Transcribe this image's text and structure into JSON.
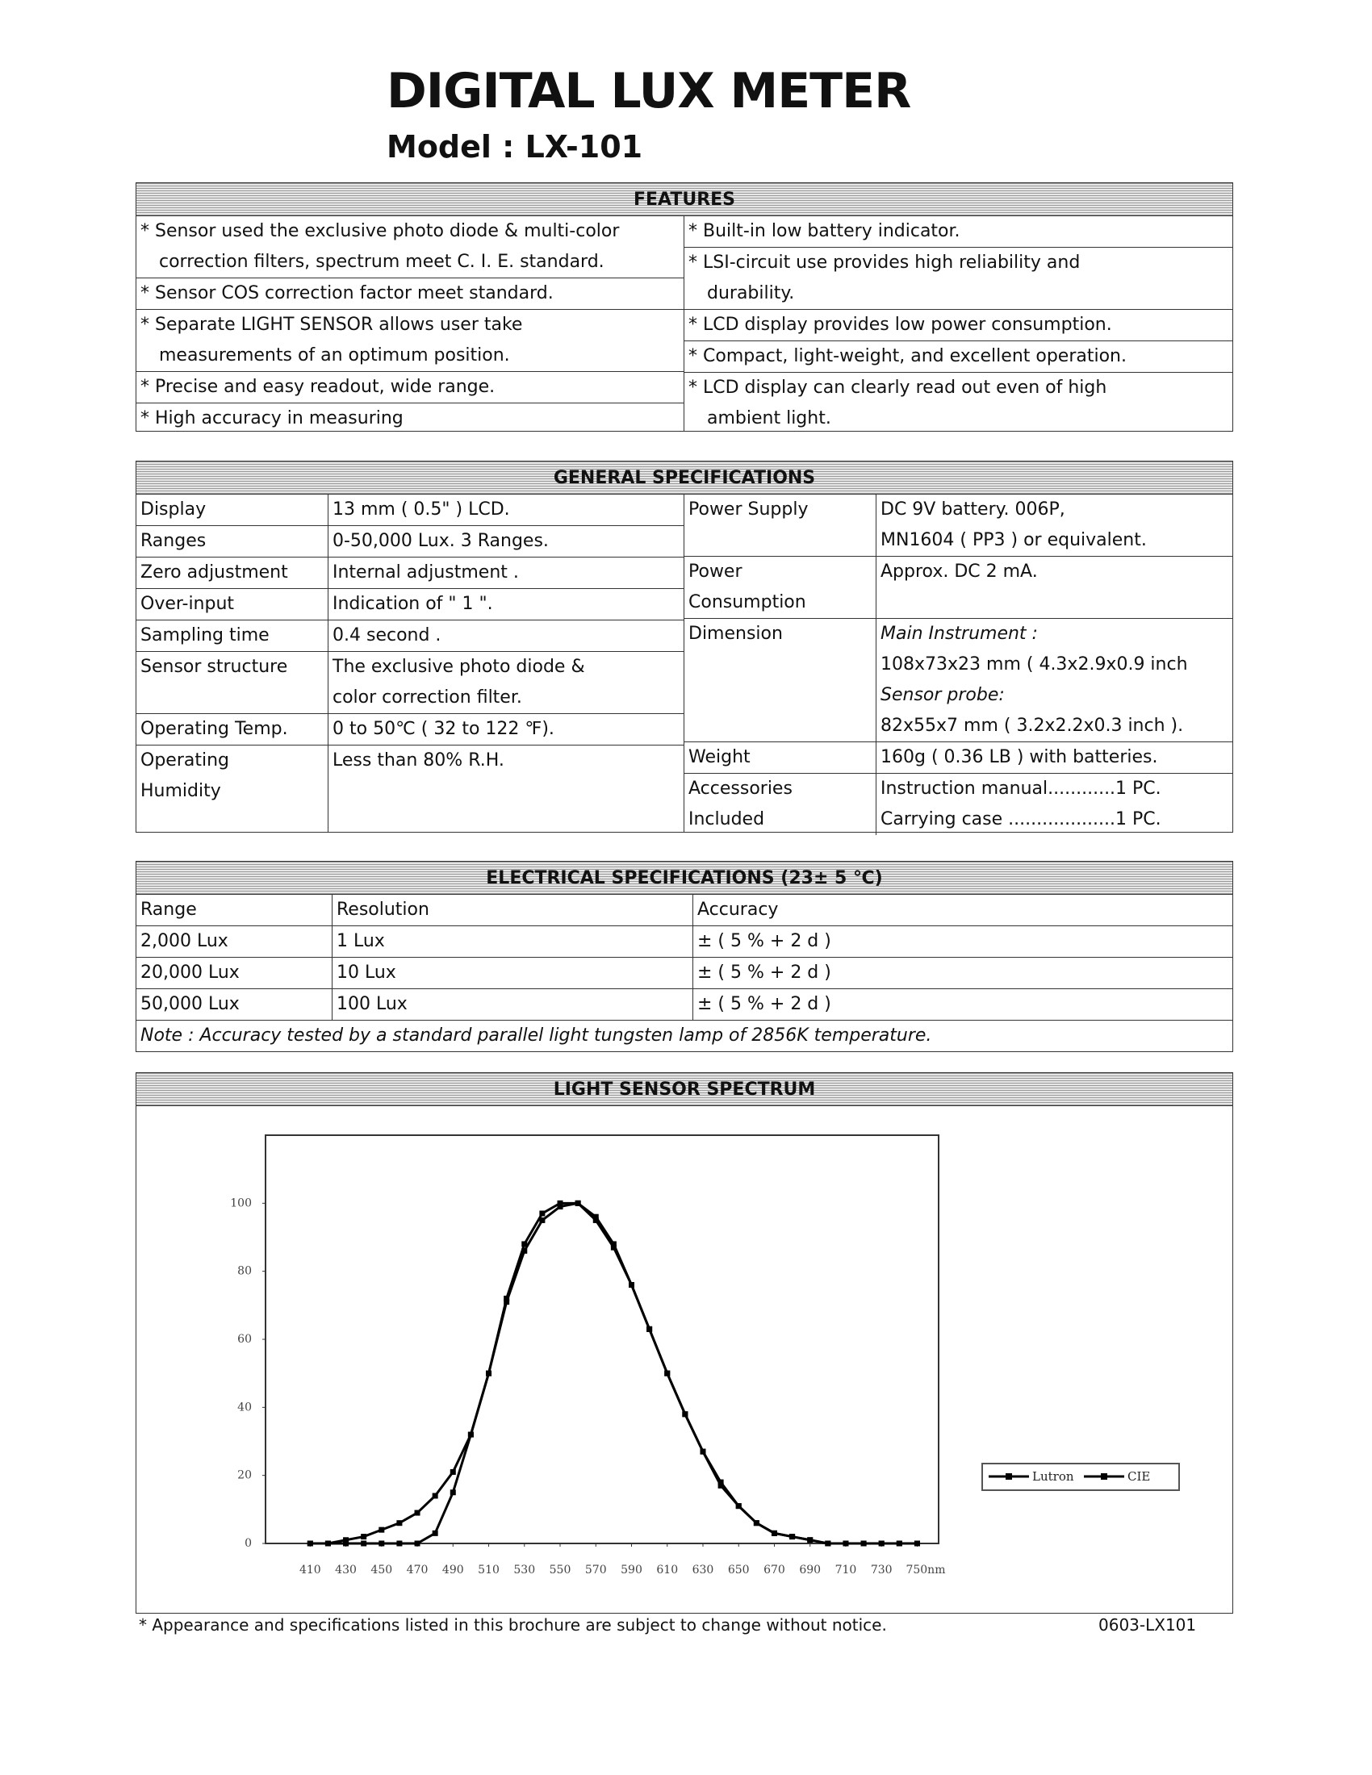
{
  "header": {
    "title": "DIGITAL LUX METER",
    "model": "Model : LX-101"
  },
  "features": {
    "heading": "FEATURES",
    "left": [
      [
        "* Sensor used the exclusive photo diode & multi-color",
        "correction filters, spectrum meet C. I. E. standard."
      ],
      [
        "*  Sensor COS correction factor meet standard."
      ],
      [
        "* Separate LIGHT SENSOR allows user take",
        "measurements of an optimum position."
      ],
      [
        "* Precise and easy readout, wide range."
      ],
      [
        "* High accuracy in measuring"
      ]
    ],
    "right": [
      [
        "* Built-in low battery indicator."
      ],
      [
        "* LSI-circuit use provides high reliability and",
        "durability."
      ],
      [
        "* LCD display provides low power consumption."
      ],
      [
        "* Compact, light-weight, and excellent operation."
      ],
      [
        "* LCD display can clearly read out even of high",
        "ambient light."
      ]
    ]
  },
  "general": {
    "heading": "GENERAL SPECIFICATIONS",
    "left": [
      {
        "label": [
          "Display"
        ],
        "value": [
          "13 mm ( 0.5\" ) LCD."
        ]
      },
      {
        "label": [
          "Ranges"
        ],
        "value": [
          "0-50,000 Lux. 3 Ranges."
        ]
      },
      {
        "label": [
          "Zero adjustment"
        ],
        "value": [
          "Internal adjustment ."
        ]
      },
      {
        "label": [
          "Over-input"
        ],
        "value": [
          "Indication of \" 1 \"."
        ]
      },
      {
        "label": [
          "Sampling time"
        ],
        "value": [
          "0.4 second ."
        ]
      },
      {
        "label": [
          "Sensor structure"
        ],
        "value": [
          "The exclusive photo diode &",
          "color correction filter."
        ]
      },
      {
        "label": [
          "Operating Temp."
        ],
        "value": [
          "0 to 50℃ ( 32 to 122 ℉)."
        ]
      },
      {
        "label": [
          "Operating",
          "Humidity"
        ],
        "value": [
          "Less than 80% R.H."
        ]
      }
    ],
    "right": [
      {
        "label": [
          "Power Supply"
        ],
        "value": [
          "DC 9V battery. 006P,",
          "MN1604 ( PP3 ) or equivalent."
        ]
      },
      {
        "label": [
          "Power",
          "Consumption"
        ],
        "value": [
          "Approx. DC 2 mA."
        ]
      },
      {
        "label": [
          "Dimension"
        ],
        "value": [
          "Main Instrument :",
          "108x73x23 mm ( 4.3x2.9x0.9 inch",
          "Sensor probe:",
          "82x55x7 mm ( 3.2x2.2x0.3 inch )."
        ]
      },
      {
        "label": [
          "Weight"
        ],
        "value": [
          "160g ( 0.36 LB ) with batteries."
        ]
      },
      {
        "label": [
          "Accessories",
          "Included"
        ],
        "value": [
          "Instruction manual............1 PC.",
          "Carrying case ...................1 PC."
        ]
      }
    ]
  },
  "electrical": {
    "heading": "ELECTRICAL SPECIFICATIONS (23± 5 ℃)",
    "columns": [
      "Range",
      "Resolution",
      "Accuracy"
    ],
    "rows": [
      [
        "2,000 Lux",
        "1 Lux",
        "± ( 5 % + 2 d )"
      ],
      [
        "20,000 Lux",
        "10 Lux",
        "± ( 5 % + 2 d )"
      ],
      [
        "50,000 Lux",
        "100 Lux",
        "± ( 5 % + 2 d )"
      ]
    ],
    "note": "Note : Accuracy tested by a standard parallel light tungsten lamp of 2856K temperature."
  },
  "spectrum": {
    "heading": "LIGHT SENSOR SPECTRUM"
  },
  "chart_data": {
    "type": "line",
    "x": [
      410,
      420,
      430,
      440,
      450,
      460,
      470,
      480,
      490,
      500,
      510,
      520,
      530,
      540,
      550,
      560,
      570,
      580,
      590,
      600,
      610,
      620,
      630,
      640,
      650,
      660,
      670,
      680,
      690,
      700,
      710,
      720,
      730,
      740,
      750
    ],
    "series": [
      {
        "name": "Lutron",
        "color": "#000000",
        "values": [
          0,
          0,
          0,
          0,
          0,
          0,
          0,
          3,
          15,
          32,
          50,
          72,
          88,
          97,
          100,
          100,
          96,
          88,
          76,
          63,
          50,
          38,
          27,
          17,
          11,
          6,
          3,
          2,
          1,
          0,
          0,
          0,
          0,
          0,
          0
        ]
      },
      {
        "name": "CIE",
        "color": "#000000",
        "values": [
          0,
          0,
          1,
          2,
          4,
          6,
          9,
          14,
          21,
          32,
          50,
          71,
          86,
          95,
          99,
          100,
          95,
          87,
          76,
          63,
          50,
          38,
          27,
          18,
          11,
          6,
          3,
          2,
          1,
          0,
          0,
          0,
          0,
          0,
          0
        ]
      }
    ],
    "xlim": [
      385,
      762
    ],
    "ylim": [
      0,
      120
    ],
    "xticks": [
      410,
      430,
      450,
      470,
      490,
      510,
      530,
      550,
      570,
      590,
      610,
      630,
      650,
      670,
      690,
      710,
      730,
      {
        "value": 750,
        "label": "750nm"
      }
    ],
    "yticks": [
      0,
      20,
      40,
      60,
      80,
      100
    ]
  },
  "footer": {
    "notice": "* Appearance and specifications listed in this brochure are subject to change without notice.",
    "code": "0603-LX101"
  }
}
